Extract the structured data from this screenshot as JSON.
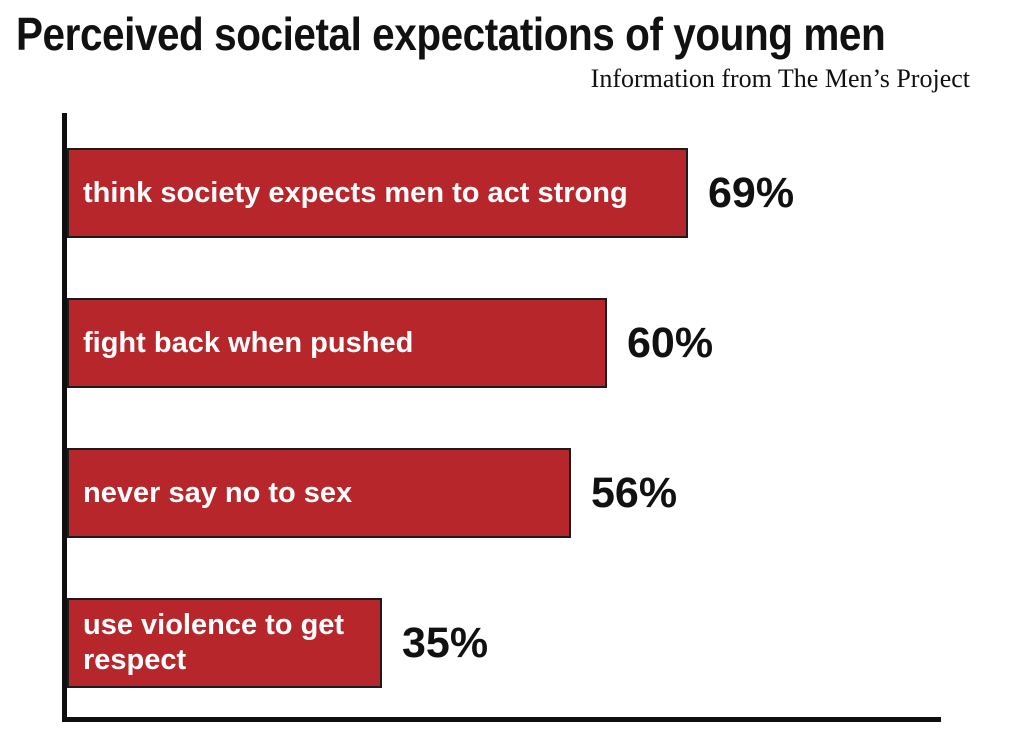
{
  "title": "Perceived societal expectations of young men",
  "subtitle": "Information from The Men’s Project",
  "colors": {
    "bar_fill": "#b7262b",
    "bar_border": "#1c1c1c",
    "axis": "#0f0f0f",
    "title_text": "#111111",
    "value_text": "#111111",
    "bar_label_text": "#ffffff",
    "background": "#ffffff"
  },
  "chart_data": {
    "type": "bar",
    "orientation": "horizontal",
    "title": "Perceived societal expectations of young men",
    "source_note": "Information from The Men’s Project",
    "categories": [
      "think society expects men to act strong",
      "fight back when pushed",
      "never say no to sex",
      "use violence to get respect"
    ],
    "values": [
      69,
      60,
      56,
      35
    ],
    "value_labels": [
      "69%",
      "60%",
      "56%",
      "35%"
    ],
    "unit": "%",
    "xlim": [
      0,
      100
    ],
    "grid": false,
    "legend": false,
    "value_label_position": "right-of-bar",
    "bar_color": "#b7262b"
  }
}
